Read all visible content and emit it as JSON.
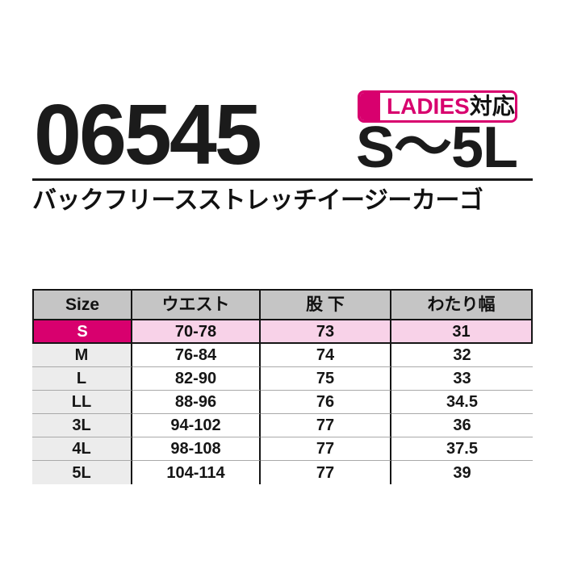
{
  "page": {
    "background": "#ffffff"
  },
  "header": {
    "badge": {
      "ladies": "LADIES",
      "taio": "対応",
      "color": "#d8006e"
    },
    "product_code": "06545",
    "size_range": "S〜5L",
    "product_name": "バックフリースストレッチイージーカーゴ"
  },
  "size_table": {
    "columns": [
      "Size",
      "ウエスト",
      "股 下",
      "わたり幅"
    ],
    "header_bg": "#c5c5c5",
    "highlight_color": "#d8006e",
    "highlight_row_bg": "#f8d2e8",
    "rows": [
      {
        "size": "S",
        "waist": "70-78",
        "inseam": "73",
        "watari": "31"
      },
      {
        "size": "M",
        "waist": "76-84",
        "inseam": "74",
        "watari": "32"
      },
      {
        "size": "L",
        "waist": "82-90",
        "inseam": "75",
        "watari": "33"
      },
      {
        "size": "LL",
        "waist": "88-96",
        "inseam": "76",
        "watari": "34.5"
      },
      {
        "size": "3L",
        "waist": "94-102",
        "inseam": "77",
        "watari": "36"
      },
      {
        "size": "4L",
        "waist": "98-108",
        "inseam": "77",
        "watari": "37.5"
      },
      {
        "size": "5L",
        "waist": "104-114",
        "inseam": "77",
        "watari": "39"
      }
    ]
  }
}
